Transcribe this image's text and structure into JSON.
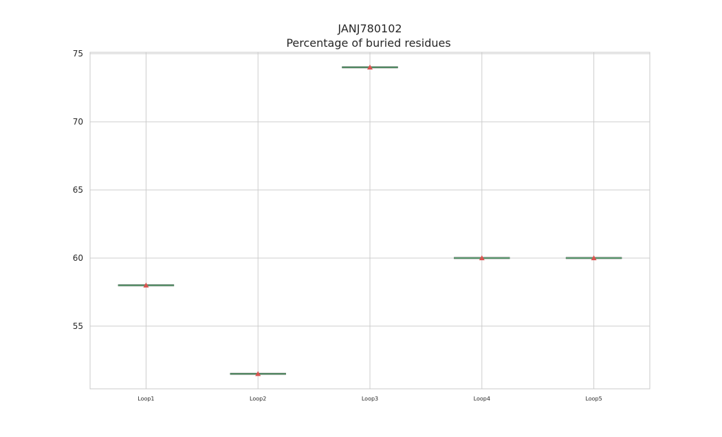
{
  "chart_data": {
    "type": "box",
    "title_line1": "JANJ780102",
    "title_line2": "Percentage of buried residues",
    "xlabel": "",
    "ylabel": "",
    "categories": [
      "Loop1",
      "Loop2",
      "Loop3",
      "Loop4",
      "Loop5"
    ],
    "values": [
      58.0,
      51.5,
      74.0,
      60.0,
      60.0
    ],
    "means": [
      58.0,
      51.5,
      74.0,
      60.0,
      60.0
    ],
    "ylim": [
      50.4,
      75.1
    ],
    "yticks": [
      55,
      60,
      65,
      70,
      75
    ],
    "grid": true,
    "colors": {
      "median": "#5a9e6f",
      "mean_marker": "#d9534f",
      "grid": "#cccccc",
      "frame": "#c8c8c8"
    }
  }
}
